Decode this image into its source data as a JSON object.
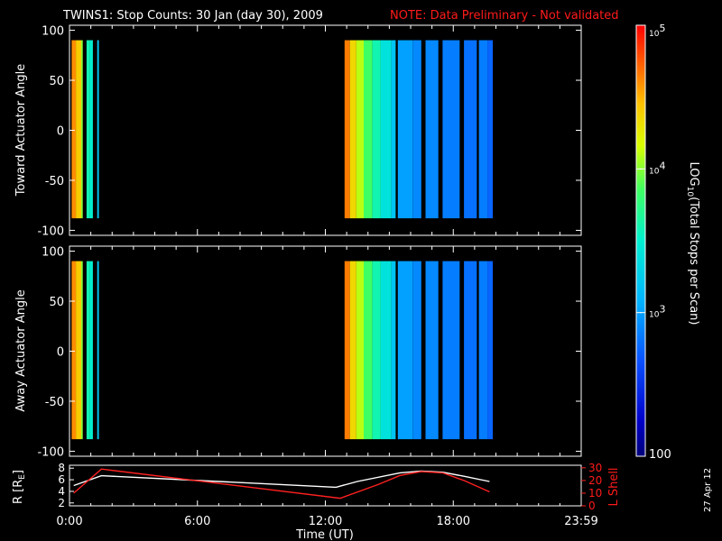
{
  "title": {
    "main": "TWINS1: Stop Counts: 30 Jan (day  30), 2009",
    "note": "NOTE: Data Preliminary - Not validated"
  },
  "date_stamp": "27 Apr 12",
  "colors": {
    "background": "#000000",
    "axes": "#ffffff",
    "note": "#ff1a1a",
    "r_line": "#ffffff",
    "l_line": "#ff2020"
  },
  "chart_data": [
    {
      "type": "heatmap",
      "ylabel": "Toward Actuator Angle",
      "ylim": [
        -105,
        105
      ],
      "yticks": [
        "100",
        "50",
        "0",
        "-50",
        "-100"
      ],
      "x_range_hours": [
        0,
        24
      ],
      "data_angle_range": [
        -88,
        90
      ],
      "colorscale": "log10 counts, 100 to 1e5 (blue to red)",
      "strips": [
        {
          "start": 0.1,
          "end": 0.3,
          "log": 4.6
        },
        {
          "start": 0.3,
          "end": 0.55,
          "log": 4.4
        },
        {
          "start": 0.55,
          "end": 0.62,
          "log": 4.0
        },
        {
          "start": 0.8,
          "end": 0.95,
          "log": 3.6
        },
        {
          "start": 0.95,
          "end": 1.1,
          "log": 3.5
        },
        {
          "start": 1.3,
          "end": 1.38,
          "log": 3.2
        },
        {
          "start": 12.9,
          "end": 13.15,
          "log": 4.65
        },
        {
          "start": 13.15,
          "end": 13.45,
          "log": 4.35
        },
        {
          "start": 13.45,
          "end": 13.8,
          "log": 4.1
        },
        {
          "start": 13.8,
          "end": 14.2,
          "log": 3.85
        },
        {
          "start": 14.2,
          "end": 14.6,
          "log": 3.6
        },
        {
          "start": 14.6,
          "end": 15.1,
          "log": 3.4
        },
        {
          "start": 15.1,
          "end": 15.3,
          "log": 3.2
        },
        {
          "start": 15.4,
          "end": 16.1,
          "log": 3.0
        },
        {
          "start": 16.1,
          "end": 16.5,
          "log": 2.9
        },
        {
          "start": 16.7,
          "end": 17.3,
          "log": 2.9
        },
        {
          "start": 17.5,
          "end": 18.3,
          "log": 2.85
        },
        {
          "start": 18.5,
          "end": 19.1,
          "log": 2.8
        },
        {
          "start": 19.2,
          "end": 19.6,
          "log": 2.85
        },
        {
          "start": 19.6,
          "end": 19.85,
          "log": 2.75
        }
      ]
    },
    {
      "type": "heatmap",
      "ylabel": "Away Actuator Angle",
      "ylim": [
        -105,
        105
      ],
      "yticks": [
        "100",
        "50",
        "0",
        "-50",
        "-100"
      ],
      "x_range_hours": [
        0,
        24
      ],
      "data_angle_range": [
        -88,
        90
      ],
      "colorscale": "log10 counts, 100 to 1e5 (blue to red)",
      "strips": [
        {
          "start": 0.1,
          "end": 0.3,
          "log": 4.6
        },
        {
          "start": 0.3,
          "end": 0.55,
          "log": 4.4
        },
        {
          "start": 0.55,
          "end": 0.62,
          "log": 4.0
        },
        {
          "start": 0.8,
          "end": 0.95,
          "log": 3.6
        },
        {
          "start": 0.95,
          "end": 1.1,
          "log": 3.5
        },
        {
          "start": 1.3,
          "end": 1.38,
          "log": 3.2
        },
        {
          "start": 12.9,
          "end": 13.15,
          "log": 4.65
        },
        {
          "start": 13.15,
          "end": 13.45,
          "log": 4.35
        },
        {
          "start": 13.45,
          "end": 13.8,
          "log": 4.1
        },
        {
          "start": 13.8,
          "end": 14.2,
          "log": 3.85
        },
        {
          "start": 14.2,
          "end": 14.6,
          "log": 3.6
        },
        {
          "start": 14.6,
          "end": 15.1,
          "log": 3.4
        },
        {
          "start": 15.1,
          "end": 15.3,
          "log": 3.2
        },
        {
          "start": 15.4,
          "end": 16.1,
          "log": 3.0
        },
        {
          "start": 16.1,
          "end": 16.5,
          "log": 2.9
        },
        {
          "start": 16.7,
          "end": 17.3,
          "log": 2.9
        },
        {
          "start": 17.5,
          "end": 18.3,
          "log": 2.85
        },
        {
          "start": 18.5,
          "end": 19.1,
          "log": 2.8
        },
        {
          "start": 19.2,
          "end": 19.6,
          "log": 2.85
        },
        {
          "start": 19.6,
          "end": 19.85,
          "log": 2.75
        }
      ]
    },
    {
      "type": "line",
      "xlabel": "Time (UT)",
      "x_ticks": [
        "0:00",
        "6:00",
        "12:00",
        "18:00",
        "23:59"
      ],
      "x_tick_hours": [
        0,
        6,
        12,
        18,
        24
      ],
      "y_left_label": "R [R",
      "y_left_label_sub": "E",
      "y_left_label_end": "]",
      "y_left_ticks": [
        "8",
        "6",
        "4",
        "2"
      ],
      "y_left_lim": [
        1.5,
        8.5
      ],
      "y_right_label": "L Shell",
      "y_right_ticks": [
        "30",
        "20",
        "10",
        "0"
      ],
      "y_right_lim": [
        0,
        32
      ],
      "series": [
        {
          "axis": "left",
          "color": "#ffffff",
          "x": [
            0.2,
            1.5,
            12.5,
            13.5,
            15.5,
            16.5,
            17.5,
            18.5,
            19.7
          ],
          "y": [
            5.0,
            6.7,
            4.7,
            5.7,
            7.2,
            7.5,
            7.3,
            6.6,
            5.7
          ]
        },
        {
          "axis": "right",
          "color": "#ff2020",
          "x": [
            0.2,
            1.5,
            12.7,
            14.5,
            15.5,
            16.5,
            17.5,
            18.5,
            19.7
          ],
          "y": [
            10,
            29,
            6,
            17,
            24,
            27,
            26,
            20,
            11
          ]
        }
      ]
    }
  ],
  "colorbar": {
    "label_prefix": "LOG",
    "label_sub": "10",
    "label_suffix": "(Total Stops per Scan)",
    "ticks": [
      {
        "base": "10",
        "exp": "5",
        "log": 5
      },
      {
        "base": "10",
        "exp": "4",
        "log": 4
      },
      {
        "base": "10",
        "exp": "3",
        "log": 3
      },
      {
        "base": "100",
        "exp": "",
        "log": 2
      }
    ],
    "range_log": [
      2,
      5
    ]
  }
}
